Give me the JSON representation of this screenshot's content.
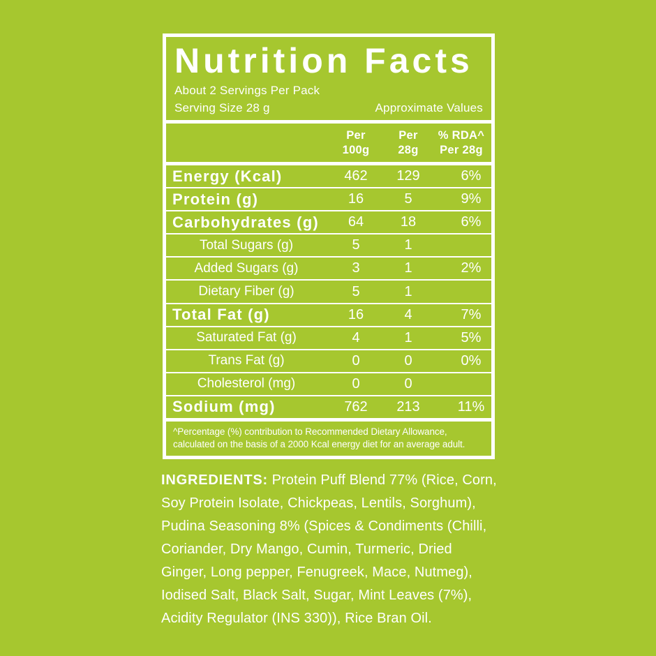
{
  "colors": {
    "background": "#a6c72f",
    "panel_border": "#ffffff",
    "text": "#ffffff"
  },
  "panel": {
    "title": "Nutrition Facts",
    "servings_per_pack": "About 2 Servings Per Pack",
    "serving_size": "Serving Size 28 g",
    "approximate_values": "Approximate Values",
    "columns": [
      {
        "line1": "Per",
        "line2": "100g"
      },
      {
        "line1": "Per",
        "line2": "28g"
      },
      {
        "line1": "% RDA^",
        "line2": "Per 28g"
      }
    ],
    "rows": [
      {
        "name": "Energy (Kcal)",
        "bold": true,
        "per_100g": "462",
        "per_28g": "129",
        "rda_per_28g": "6%"
      },
      {
        "name": "Protein (g)",
        "bold": true,
        "per_100g": "16",
        "per_28g": "5",
        "rda_per_28g": "9%"
      },
      {
        "name": "Carbohydrates (g)",
        "bold": true,
        "per_100g": "64",
        "per_28g": "18",
        "rda_per_28g": "6%"
      },
      {
        "name": "Total Sugars (g)",
        "bold": false,
        "per_100g": "5",
        "per_28g": "1",
        "rda_per_28g": ""
      },
      {
        "name": "Added Sugars (g)",
        "bold": false,
        "per_100g": "3",
        "per_28g": "1",
        "rda_per_28g": "2%"
      },
      {
        "name": "Dietary Fiber (g)",
        "bold": false,
        "per_100g": "5",
        "per_28g": "1",
        "rda_per_28g": ""
      },
      {
        "name": "Total Fat (g)",
        "bold": true,
        "per_100g": "16",
        "per_28g": "4",
        "rda_per_28g": "7%"
      },
      {
        "name": "Saturated Fat (g)",
        "bold": false,
        "per_100g": "4",
        "per_28g": "1",
        "rda_per_28g": "5%"
      },
      {
        "name": "Trans Fat (g)",
        "bold": false,
        "per_100g": "0",
        "per_28g": "0",
        "rda_per_28g": "0%"
      },
      {
        "name": "Cholesterol (mg)",
        "bold": false,
        "per_100g": "0",
        "per_28g": "0",
        "rda_per_28g": ""
      },
      {
        "name": "Sodium (mg)",
        "bold": true,
        "per_100g": "762",
        "per_28g": "213",
        "rda_per_28g": "11%"
      }
    ],
    "footnote_line1": "^Percentage (%) contribution to Recommended Dietary Allowance,",
    "footnote_line2": "calculated on the basis of a 2000 Kcal energy diet for an average adult."
  },
  "ingredients": {
    "heading": "INGREDIENTS:",
    "body": " Protein Puff Blend 77% (Rice, Corn, Soy Protein Isolate, Chickpeas, Lentils, Sorghum), Pudina Seasoning 8% (Spices & Condiments (Chilli, Coriander, Dry Mango, Cumin, Turmeric, Dried Ginger, Long pepper, Fenugreek, Mace, Nutmeg), Iodised Salt, Black Salt, Sugar, Mint Leaves (7%), Acidity Regulator (INS 330)), Rice Bran Oil."
  }
}
